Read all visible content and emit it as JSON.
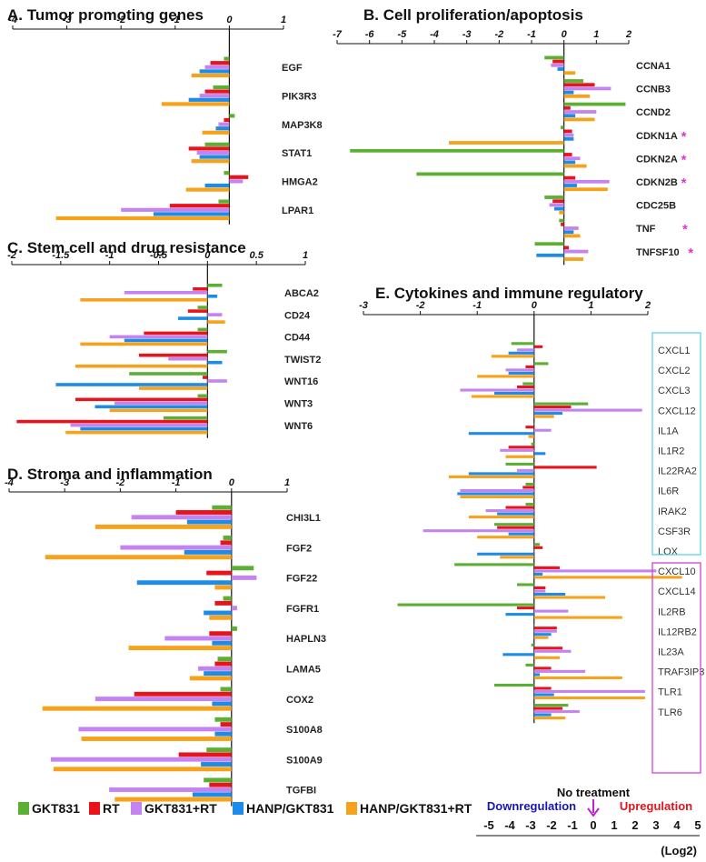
{
  "legend": [
    {
      "label": "GKT831",
      "color": "#5bb033"
    },
    {
      "label": "RT",
      "color": "#e8141c"
    },
    {
      "label": "GKT831+RT",
      "color": "#c583f2"
    },
    {
      "label": "HANP/GKT831",
      "color": "#1d8ce8"
    },
    {
      "label": "HANP/GKT831+RT",
      "color": "#f7a21b"
    }
  ],
  "scale_legend": {
    "title": "No treatment",
    "down": "Downregulation",
    "up": "Upregulation",
    "ticks": [
      "-5",
      "-4",
      "-3",
      "-2",
      "-1",
      "0",
      "1",
      "2",
      "3",
      "4",
      "5"
    ],
    "unit": "(Log2)",
    "colors": {
      "down": "#1515b8",
      "up": "#e0141c",
      "arrow": "#c020d0"
    }
  },
  "chart_data": [
    {
      "id": "A",
      "type": "bar",
      "orientation": "horizontal",
      "title": "A. Tumor promoting genes",
      "xlim": [
        -4,
        1
      ],
      "ticks": [
        "-4",
        "-3",
        "-2",
        "-1",
        "0",
        "1"
      ],
      "series_names": [
        "GKT831",
        "RT",
        "GKT831+RT",
        "HANP/GKT831",
        "HANP/GKT831+RT"
      ],
      "categories": [
        {
          "name": "EGF",
          "values": [
            -0.1,
            -0.35,
            -0.45,
            -0.55,
            -0.7
          ]
        },
        {
          "name": "PIK3R3",
          "values": [
            -0.3,
            -0.45,
            -0.55,
            -0.75,
            -1.25
          ]
        },
        {
          "name": "MAP3K8",
          "values": [
            0.1,
            -0.1,
            -0.2,
            -0.25,
            -0.5
          ]
        },
        {
          "name": "STAT1",
          "values": [
            -0.45,
            -0.75,
            -0.6,
            -0.55,
            -0.7
          ]
        },
        {
          "name": "HMGA2",
          "values": [
            -0.1,
            0.35,
            0.25,
            -0.45,
            -0.8
          ]
        },
        {
          "name": "LPAR1",
          "values": [
            -0.2,
            -1.1,
            -2.0,
            -1.4,
            -3.2
          ]
        }
      ]
    },
    {
      "id": "B",
      "type": "bar",
      "orientation": "horizontal",
      "title": "B. Cell proliferation/apoptosis",
      "xlim": [
        -7,
        2
      ],
      "ticks": [
        "-7",
        "-6",
        "-5",
        "-4",
        "-3",
        "-2",
        "-1",
        "0",
        "1",
        "2"
      ],
      "series_names": [
        "GKT831",
        "RT",
        "GKT831+RT",
        "HANP/GKT831",
        "HANP/GKT831+RT"
      ],
      "categories": [
        {
          "name": "CCNA1",
          "star": false,
          "values": [
            -0.6,
            -0.35,
            -0.4,
            -0.2,
            0.35
          ]
        },
        {
          "name": "CCNB3",
          "star": false,
          "values": [
            0.6,
            0.95,
            1.45,
            0.3,
            0.8
          ]
        },
        {
          "name": "CCND2",
          "star": false,
          "values": [
            1.9,
            0.2,
            1.0,
            0.35,
            0.95
          ]
        },
        {
          "name": "CDKN1A",
          "star": true,
          "values": [
            -0.1,
            0.25,
            0.3,
            0.3,
            -3.55
          ]
        },
        {
          "name": "CDKN2A",
          "star": true,
          "values": [
            -6.6,
            0.25,
            0.5,
            0.35,
            0.7
          ]
        },
        {
          "name": "CDKN2B",
          "star": true,
          "values": [
            -4.55,
            0.35,
            1.4,
            0.4,
            1.35
          ]
        },
        {
          "name": "CDC25B",
          "star": false,
          "values": [
            -0.6,
            -0.35,
            -0.45,
            -0.3,
            -0.15
          ]
        },
        {
          "name": "TNF",
          "star": true,
          "values": [
            -0.15,
            -0.1,
            0.45,
            0.3,
            0.5
          ]
        },
        {
          "name": "TNFSF10",
          "star": true,
          "values": [
            -0.9,
            0.15,
            0.75,
            -0.85,
            0.6
          ]
        }
      ]
    },
    {
      "id": "C",
      "type": "bar",
      "orientation": "horizontal",
      "title": "C. Stem cell and drug resistance",
      "xlim": [
        -2,
        1
      ],
      "ticks": [
        "-2",
        "-1.5",
        "-1",
        "-0.5",
        "0",
        "0.5",
        "1"
      ],
      "series_names": [
        "GKT831",
        "RT",
        "GKT831+RT",
        "HANP/GKT831",
        "HANP/GKT831+RT"
      ],
      "categories": [
        {
          "name": "ABCA2",
          "values": [
            0.15,
            -0.15,
            -0.85,
            0.1,
            -1.3
          ]
        },
        {
          "name": "CD24",
          "values": [
            -0.1,
            -0.2,
            0.15,
            -0.3,
            0.18
          ]
        },
        {
          "name": "CD44",
          "values": [
            -0.1,
            -0.65,
            -1.0,
            -0.85,
            -1.3
          ]
        },
        {
          "name": "TWIST2",
          "values": [
            0.2,
            -0.7,
            -0.4,
            0.15,
            -1.35
          ]
        },
        {
          "name": "WNT16",
          "values": [
            -0.8,
            -0.05,
            0.2,
            -1.55,
            -0.7
          ]
        },
        {
          "name": "WNT3",
          "values": [
            -0.1,
            -1.35,
            -0.95,
            -1.15,
            -1.0
          ]
        },
        {
          "name": "WNT6",
          "values": [
            -0.45,
            -1.95,
            -1.4,
            -1.3,
            -1.45
          ]
        }
      ]
    },
    {
      "id": "D",
      "type": "bar",
      "orientation": "horizontal",
      "title": "D. Stroma and inflammation",
      "xlim": [
        -4,
        1
      ],
      "ticks": [
        "-4",
        "-3",
        "-2",
        "-1",
        "0",
        "1"
      ],
      "series_names": [
        "GKT831",
        "RT",
        "GKT831+RT",
        "HANP/GKT831",
        "HANP/GKT831+RT"
      ],
      "categories": [
        {
          "name": "CHI3L1",
          "values": [
            -0.35,
            -1.0,
            -1.8,
            -0.8,
            -2.45
          ]
        },
        {
          "name": "FGF2",
          "values": [
            -0.15,
            -0.2,
            -2.0,
            -0.85,
            -3.35
          ]
        },
        {
          "name": "FGF22",
          "values": [
            0.4,
            -0.45,
            0.45,
            -1.7,
            -0.3
          ]
        },
        {
          "name": "FGFR1",
          "values": [
            -0.15,
            -0.3,
            0.1,
            -0.5,
            -0.4
          ]
        },
        {
          "name": "HAPLN3",
          "values": [
            0.1,
            -0.4,
            -1.2,
            -0.35,
            -1.85
          ]
        },
        {
          "name": "LAMA5",
          "values": [
            -0.25,
            -0.3,
            -0.6,
            -0.5,
            -0.75
          ]
        },
        {
          "name": "COX2",
          "values": [
            -0.2,
            -1.75,
            -2.45,
            -0.35,
            -3.4
          ]
        },
        {
          "name": "S100A8",
          "values": [
            -0.3,
            -0.2,
            -2.75,
            -0.3,
            -2.7
          ]
        },
        {
          "name": "S100A9",
          "values": [
            -0.45,
            -0.95,
            -3.25,
            -0.55,
            -3.2
          ]
        },
        {
          "name": "TGFBI",
          "values": [
            -0.5,
            -0.4,
            -2.2,
            -0.7,
            -2.1
          ]
        }
      ]
    },
    {
      "id": "E",
      "type": "bar",
      "orientation": "horizontal",
      "title": "E. Cytokines and immune regulatory",
      "xlim": [
        -3,
        2
      ],
      "ticks": [
        "-3",
        "-2",
        "-1",
        "0",
        "1",
        "2"
      ],
      "series_names": [
        "GKT831",
        "RT",
        "GKT831+RT",
        "HANP/GKT831",
        "HANP/GKT831+RT"
      ],
      "categories": [
        {
          "name": "CXCL1",
          "group": 1,
          "values": [
            -0.4,
            0.15,
            -0.3,
            -0.45,
            -0.75
          ]
        },
        {
          "name": "CXCL2",
          "group": 1,
          "values": [
            0.25,
            -0.15,
            -0.5,
            -0.45,
            -1.0
          ]
        },
        {
          "name": "CXCL3",
          "group": 1,
          "values": [
            -0.2,
            -0.3,
            -1.3,
            -0.7,
            -1.1
          ]
        },
        {
          "name": "CXCL12",
          "group": 1,
          "values": [
            0.95,
            0.65,
            1.9,
            0.5,
            0.35
          ]
        },
        {
          "name": "IL1A",
          "group": 1,
          "values": [
            0.0,
            -0.15,
            0.3,
            -1.15,
            -0.1
          ]
        },
        {
          "name": "IL1R2",
          "group": 1,
          "values": [
            -0.05,
            -0.45,
            -0.6,
            0.2,
            -0.5
          ]
        },
        {
          "name": "IL22RA2",
          "group": 1,
          "values": [
            -0.5,
            1.1,
            -0.3,
            -1.15,
            -1.5
          ]
        },
        {
          "name": "IL6R",
          "group": 1,
          "values": [
            -0.15,
            -0.2,
            -1.3,
            -1.35,
            -1.3
          ]
        },
        {
          "name": "IRAK2",
          "group": 1,
          "values": [
            -0.15,
            -0.5,
            -0.85,
            -0.65,
            -1.15
          ]
        },
        {
          "name": "CSF3R",
          "group": 1,
          "values": [
            -0.7,
            -0.65,
            -1.95,
            -0.45,
            -1.0
          ]
        },
        {
          "name": "LOX",
          "group": 1,
          "values": [
            0.1,
            0.15,
            0.0,
            -1.0,
            -0.6
          ]
        },
        {
          "name": "CXCL10",
          "group": 2,
          "values": [
            -1.4,
            0.45,
            2.15,
            0.15,
            2.6
          ]
        },
        {
          "name": "CXCL14",
          "group": 2,
          "values": [
            -0.3,
            0.2,
            0.2,
            0.55,
            1.25
          ]
        },
        {
          "name": "IL2RB",
          "group": 2,
          "values": [
            -2.4,
            -0.3,
            0.6,
            -0.5,
            1.55
          ]
        },
        {
          "name": "IL12RB2",
          "group": 2,
          "values": [
            0.0,
            0.4,
            0.4,
            0.3,
            0.25
          ]
        },
        {
          "name": "IL23A",
          "group": 2,
          "values": [
            -0.05,
            0.5,
            0.65,
            -0.55,
            0.45
          ]
        },
        {
          "name": "TRAF3IP3",
          "group": 2,
          "values": [
            -0.15,
            0.3,
            0.9,
            0.1,
            1.55
          ]
        },
        {
          "name": "TLR1",
          "group": 2,
          "values": [
            -0.7,
            0.3,
            1.95,
            0.35,
            1.95
          ]
        },
        {
          "name": "TLR6",
          "group": 2,
          "values": [
            0.6,
            0.5,
            0.8,
            0.3,
            0.55
          ]
        }
      ]
    }
  ]
}
